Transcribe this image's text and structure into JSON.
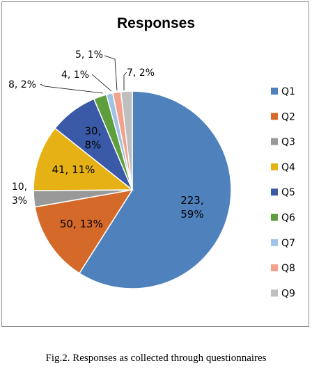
{
  "chart_data": {
    "type": "pie",
    "title": "Responses",
    "categories": [
      "Q1",
      "Q2",
      "Q3",
      "Q4",
      "Q5",
      "Q6",
      "Q7",
      "Q8",
      "Q9"
    ],
    "values": [
      223,
      50,
      10,
      41,
      30,
      8,
      4,
      5,
      7
    ],
    "percent_labels": [
      "59%",
      "13%",
      "3%",
      "11%",
      "8%",
      "2%",
      "1%",
      "1%",
      "2%"
    ],
    "data_labels": [
      "223,\n59%",
      "50, 13%",
      "10,\n3%",
      "41, 11%",
      "30,\n8%",
      "8, 2%",
      "4, 1%",
      "5, 1%",
      "7, 2%"
    ],
    "colors": [
      "#4f81bd",
      "#d4692a",
      "#999999",
      "#e5b114",
      "#3a5aa8",
      "#5e9e3c",
      "#9fc3e6",
      "#f2a28c",
      "#bfbfbf"
    ],
    "legend_position": "right",
    "start_angle": "top, clockwise"
  },
  "caption": "Fig.2. Responses as collected through questionnaires"
}
